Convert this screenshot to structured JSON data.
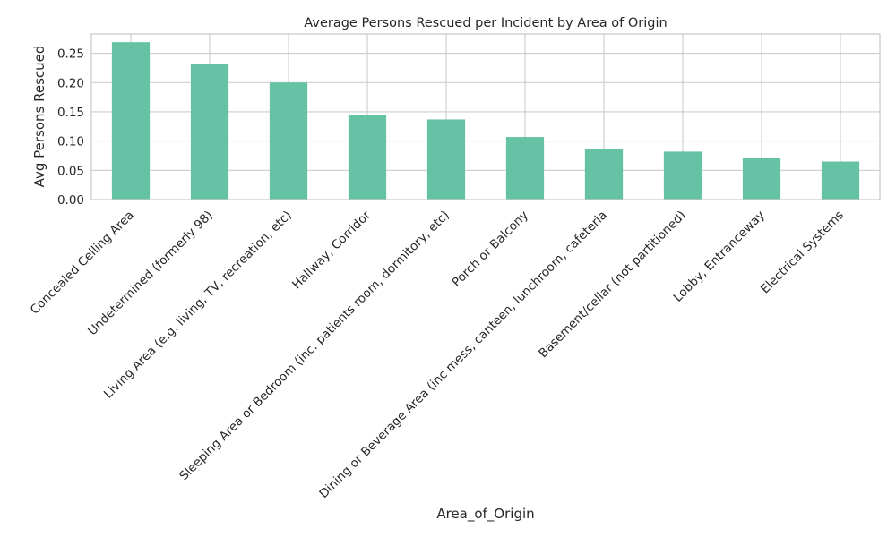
{
  "chart_data": {
    "type": "bar",
    "title": "Average Persons Rescued per Incident by Area of Origin",
    "xlabel": "Area_of_Origin",
    "ylabel": "Avg Persons Rescued",
    "categories": [
      "Concealed Ceiling Area",
      "Undetermined  (formerly 98)",
      "Living Area (e.g. living, TV, recreation, etc)",
      "Hallway, Corridor",
      "Sleeping Area or Bedroom (inc. patients room, dormitory, etc)",
      "Porch or Balcony",
      "Dining or Beverage Area (inc mess, canteen, lunchroom, cafeteria",
      "Basement/cellar (not partitioned)",
      "Lobby, Entranceway",
      "Electrical Systems"
    ],
    "values": [
      0.269,
      0.231,
      0.2,
      0.144,
      0.137,
      0.107,
      0.087,
      0.082,
      0.071,
      0.065
    ],
    "yticks": [
      "0.00",
      "0.05",
      "0.10",
      "0.15",
      "0.20",
      "0.25"
    ],
    "ylim": [
      0,
      0.283
    ],
    "grid": true,
    "colors": {
      "bar": "#66c2a5",
      "grid": "#cccccc",
      "spine": "#cccccc",
      "text": "#262626"
    }
  }
}
